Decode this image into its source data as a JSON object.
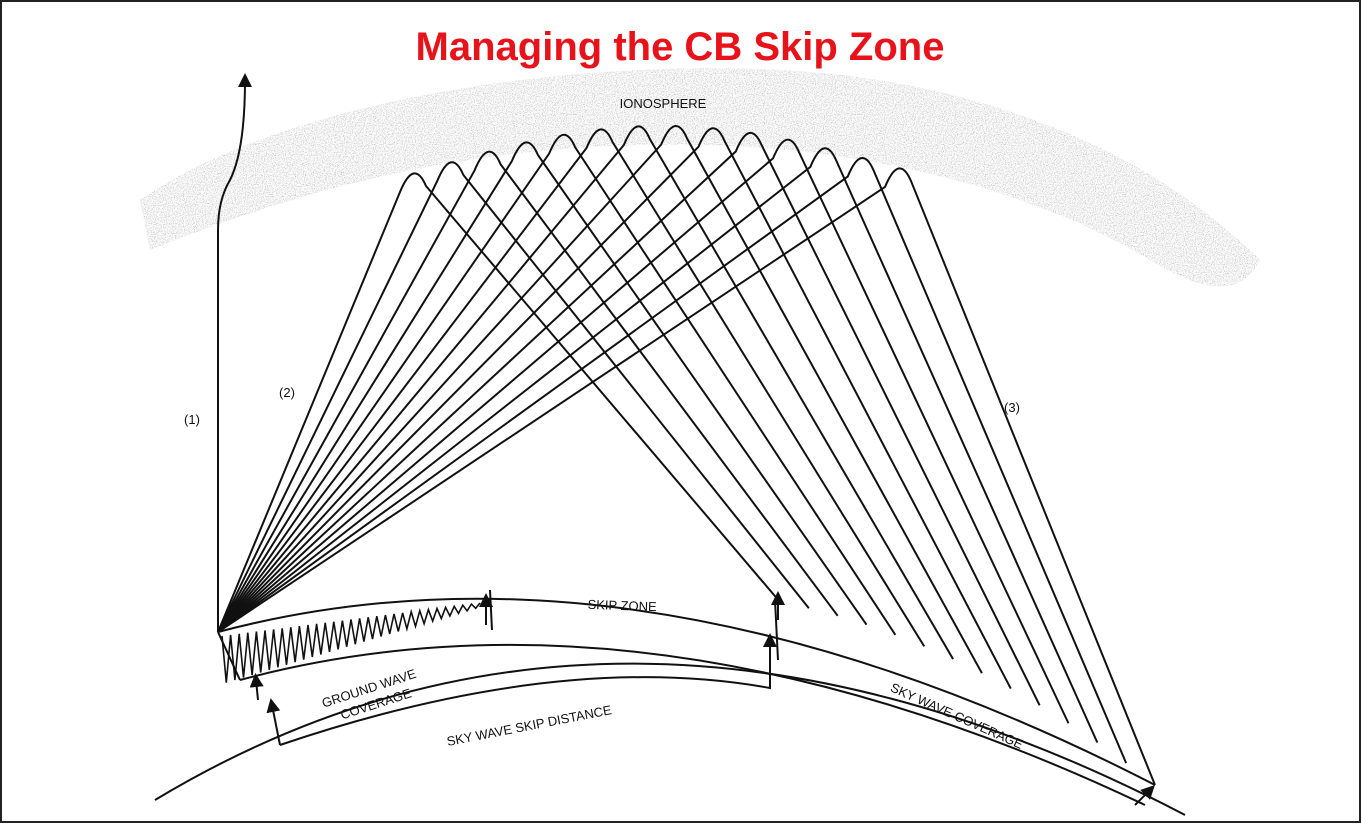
{
  "header": {
    "title": "Managing the CB Skip Zone"
  },
  "labels": {
    "ionosphere": "IONOSPHERE",
    "path_1": "(1)",
    "path_2": "(2)",
    "path_3": "(3)",
    "ground_wave_coverage": [
      "GROUND WAVE",
      "COVERAGE"
    ],
    "skip_zone": "SKIP ZONE",
    "sky_wave_skip_distance": "SKY WAVE SKIP DISTANCE",
    "sky_wave_coverage": "SKY WAVE COVERAGE"
  }
}
